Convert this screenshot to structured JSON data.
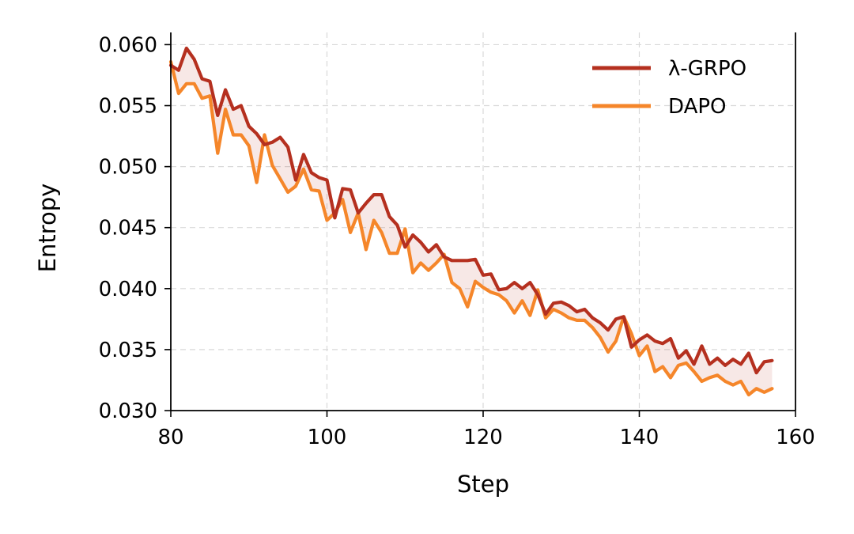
{
  "chart_data": {
    "type": "line",
    "title": "",
    "xlabel": "Step",
    "ylabel": "Entropy",
    "xlim": [
      80,
      160
    ],
    "ylim": [
      0.03,
      0.061
    ],
    "xticks": [
      "80",
      "100",
      "120",
      "140",
      "160"
    ],
    "yticks": [
      "0.030",
      "0.035",
      "0.040",
      "0.045",
      "0.050",
      "0.055",
      "0.060"
    ],
    "grid": true,
    "legend_position": "top-right",
    "x": [
      80,
      81,
      82,
      83,
      84,
      85,
      86,
      87,
      88,
      89,
      90,
      91,
      92,
      93,
      94,
      95,
      96,
      97,
      98,
      99,
      100,
      101,
      102,
      103,
      104,
      105,
      106,
      107,
      108,
      109,
      110,
      111,
      112,
      113,
      114,
      115,
      116,
      117,
      118,
      119,
      120,
      121,
      122,
      123,
      124,
      125,
      126,
      127,
      128,
      129,
      130,
      131,
      132,
      133,
      134,
      135,
      136,
      137,
      138,
      139,
      140,
      141,
      142,
      143,
      144,
      145,
      146,
      147,
      148,
      149,
      150,
      151,
      152,
      153,
      154,
      155,
      156,
      157
    ],
    "series": [
      {
        "name": "λ-GRPO",
        "color": "#b5301f",
        "values": [
          0.0583,
          0.0579,
          0.0597,
          0.0588,
          0.0572,
          0.057,
          0.0542,
          0.0563,
          0.0547,
          0.055,
          0.0533,
          0.0527,
          0.0518,
          0.052,
          0.0524,
          0.0516,
          0.0489,
          0.051,
          0.0495,
          0.0491,
          0.0489,
          0.0458,
          0.0482,
          0.0481,
          0.0462,
          0.047,
          0.0477,
          0.0477,
          0.0459,
          0.0452,
          0.0434,
          0.0444,
          0.0438,
          0.043,
          0.0436,
          0.0426,
          0.0423,
          0.0423,
          0.0423,
          0.0424,
          0.0411,
          0.0412,
          0.0399,
          0.04,
          0.0405,
          0.04,
          0.0405,
          0.0395,
          0.0379,
          0.0388,
          0.0389,
          0.0386,
          0.0381,
          0.0383,
          0.0376,
          0.0372,
          0.0366,
          0.0375,
          0.0377,
          0.0352,
          0.0358,
          0.0362,
          0.0357,
          0.0355,
          0.0359,
          0.0343,
          0.0349,
          0.0338,
          0.0353,
          0.0338,
          0.0343,
          0.0337,
          0.0342,
          0.0338,
          0.0347,
          0.0331,
          0.034,
          0.0341
        ]
      },
      {
        "name": "DAPO",
        "color": "#f5862a",
        "values": [
          0.0586,
          0.056,
          0.0568,
          0.0568,
          0.0556,
          0.0558,
          0.0511,
          0.0547,
          0.0526,
          0.0526,
          0.0517,
          0.0487,
          0.0526,
          0.0501,
          0.049,
          0.0479,
          0.0484,
          0.0498,
          0.0481,
          0.048,
          0.0456,
          0.0462,
          0.0473,
          0.0446,
          0.0462,
          0.0432,
          0.0456,
          0.0446,
          0.0429,
          0.0429,
          0.0449,
          0.0413,
          0.0421,
          0.0415,
          0.0421,
          0.0428,
          0.0405,
          0.04,
          0.0385,
          0.0406,
          0.0401,
          0.0397,
          0.0395,
          0.039,
          0.038,
          0.039,
          0.0378,
          0.0399,
          0.0376,
          0.0383,
          0.038,
          0.0376,
          0.0374,
          0.0374,
          0.0368,
          0.036,
          0.0348,
          0.0357,
          0.0377,
          0.0363,
          0.0345,
          0.0353,
          0.0332,
          0.0336,
          0.0327,
          0.0337,
          0.0339,
          0.0332,
          0.0324,
          0.0327,
          0.0329,
          0.0324,
          0.0321,
          0.0324,
          0.0313,
          0.0318,
          0.0315,
          0.0318
        ]
      }
    ]
  }
}
